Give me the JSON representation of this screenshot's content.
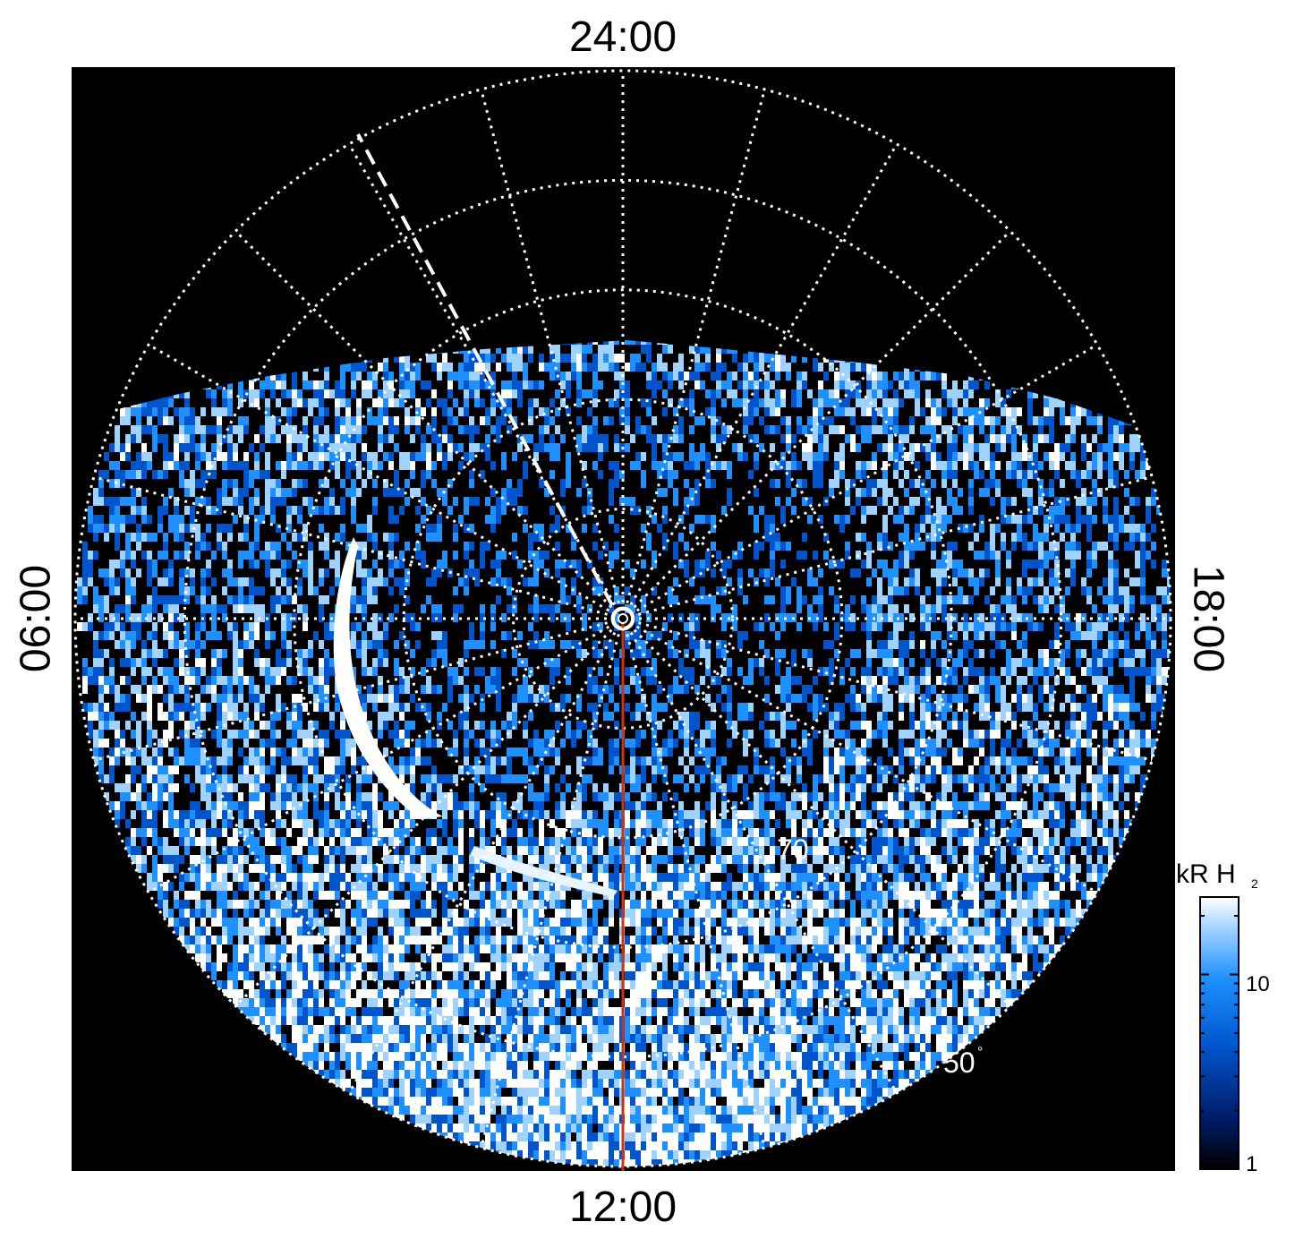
{
  "chart_data": {
    "type": "heatmap",
    "projection": "polar",
    "time_labels": {
      "top": "24:00",
      "bottom": "12:00",
      "left": "06:00",
      "right": "18:00"
    },
    "latitude_labels": [
      {
        "value": "70",
        "unit": "°"
      },
      {
        "value": "50",
        "unit": "°"
      }
    ],
    "latitude_circles": [
      80,
      70,
      60,
      50,
      40
    ],
    "meridian_step_hours": 1,
    "grid": "dotted",
    "colorbar": {
      "title": "kR H",
      "title_sub": "2",
      "scale": "log",
      "ticks": [
        "1",
        "10"
      ],
      "range": [
        1,
        25
      ],
      "colors": [
        "#000000",
        "#001a66",
        "#0055cc",
        "#1e90ff",
        "#9fd2ff",
        "#ffffff"
      ],
      "placement": "right-bottom"
    },
    "features": [
      {
        "name": "dawn emission arc",
        "description": "bright arc near 06-09 LT"
      },
      {
        "name": "noon meridian",
        "color": "#cc3311"
      }
    ]
  }
}
